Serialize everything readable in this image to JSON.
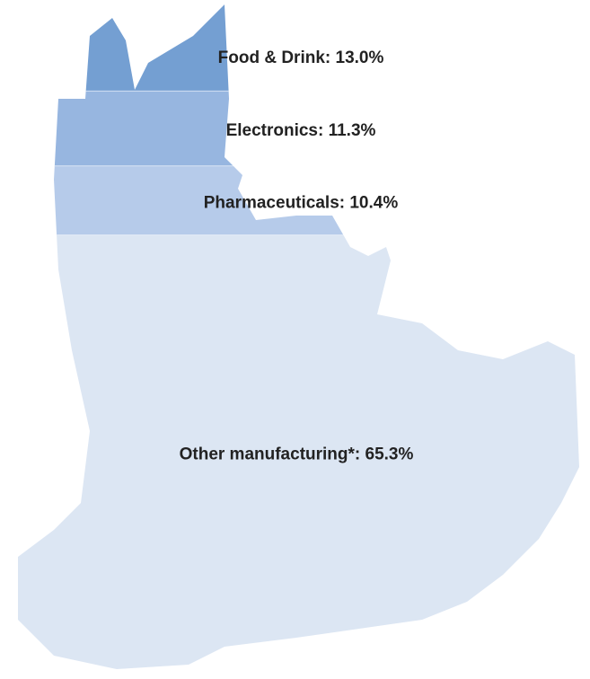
{
  "chart_data": {
    "type": "map-fill",
    "values": [
      13.0,
      11.3,
      10.4,
      65.3
    ],
    "value_labels": [
      "Food & Drink: 13.0%",
      "Electronics: 11.3%",
      "Pharmaceuticals: 10.4%",
      "Other manufacturing*: 65.3%"
    ],
    "colors": [
      "#749fd2",
      "#97b6e0",
      "#b6cbea",
      "#dce6f3"
    ]
  }
}
